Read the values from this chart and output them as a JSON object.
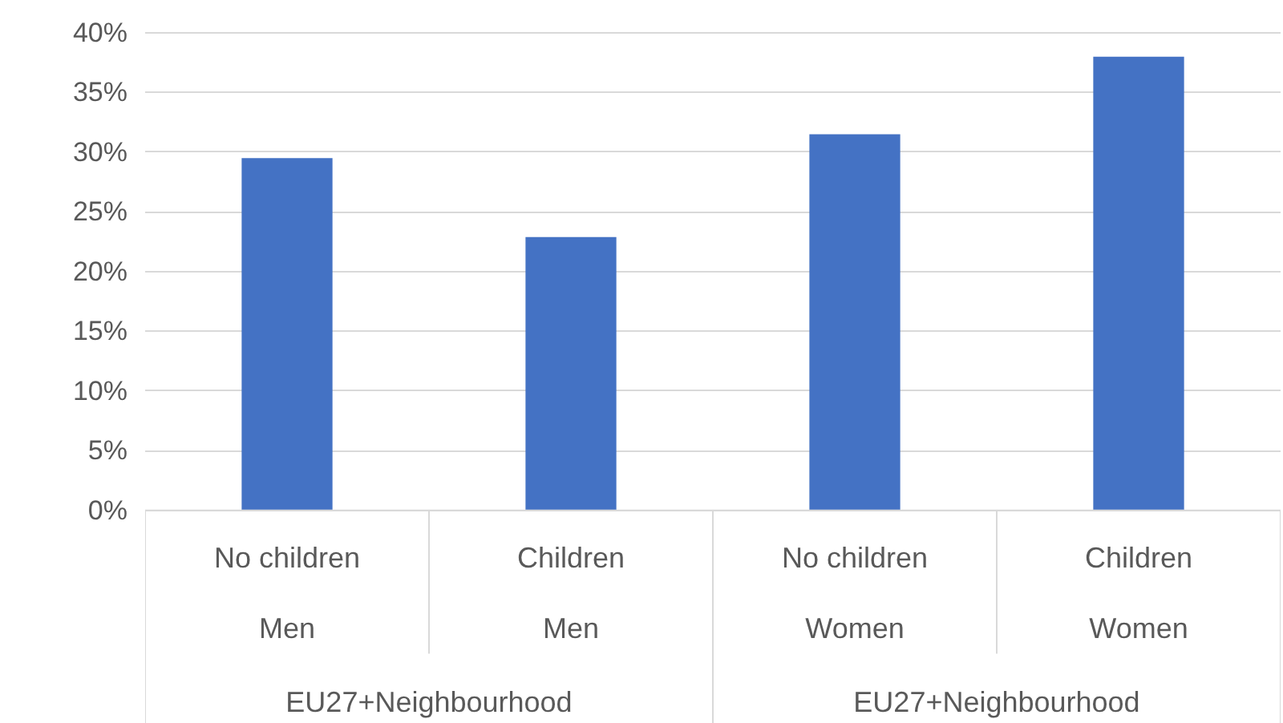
{
  "chart_data": {
    "type": "bar",
    "categories": [
      "No children\nMen",
      "Children\nMen",
      "No children\nWomen",
      "Children\nWomen"
    ],
    "values": [
      29.5,
      22.9,
      31.5,
      38.0
    ],
    "color": "#4472c4",
    "ylim": [
      0,
      40
    ],
    "yticks": [
      {
        "value": 0,
        "label": "0%"
      },
      {
        "value": 5,
        "label": "5%"
      },
      {
        "value": 10,
        "label": "10%"
      },
      {
        "value": 15,
        "label": "15%"
      },
      {
        "value": 20,
        "label": "20%"
      },
      {
        "value": 25,
        "label": "25%"
      },
      {
        "value": 30,
        "label": "30%"
      },
      {
        "value": 35,
        "label": "35%"
      },
      {
        "value": 40,
        "label": "40%"
      }
    ],
    "grid": "y",
    "annotations": [
      "EU27+Neighbourhood",
      "EU27+Neighbourhood"
    ]
  }
}
